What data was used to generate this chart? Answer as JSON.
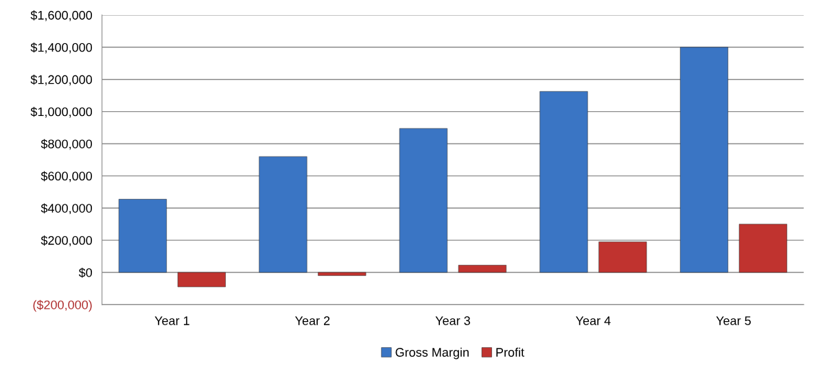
{
  "chart_data": {
    "type": "bar",
    "categories": [
      "Year 1",
      "Year 2",
      "Year 3",
      "Year 4",
      "Year 5"
    ],
    "series": [
      {
        "name": "Gross Margin",
        "color": "#3a75c4",
        "values": [
          455000,
          720000,
          895000,
          1125000,
          1400000
        ]
      },
      {
        "name": "Profit",
        "color": "#c0332f",
        "values": [
          -90000,
          -20000,
          45000,
          190000,
          300000
        ]
      }
    ],
    "ylim": [
      -200000,
      1600000
    ],
    "yticks": [
      {
        "value": -200000,
        "label": "($200,000)"
      },
      {
        "value": 0,
        "label": "$0"
      },
      {
        "value": 200000,
        "label": "$200,000"
      },
      {
        "value": 400000,
        "label": "$400,000"
      },
      {
        "value": 600000,
        "label": "$600,000"
      },
      {
        "value": 800000,
        "label": "$800,000"
      },
      {
        "value": 1000000,
        "label": "$1,000,000"
      },
      {
        "value": 1200000,
        "label": "$1,200,000"
      },
      {
        "value": 1400000,
        "label": "$1,400,000"
      },
      {
        "value": 1600000,
        "label": "$1,600,000"
      }
    ],
    "grid": "y",
    "legend": "bottom"
  }
}
